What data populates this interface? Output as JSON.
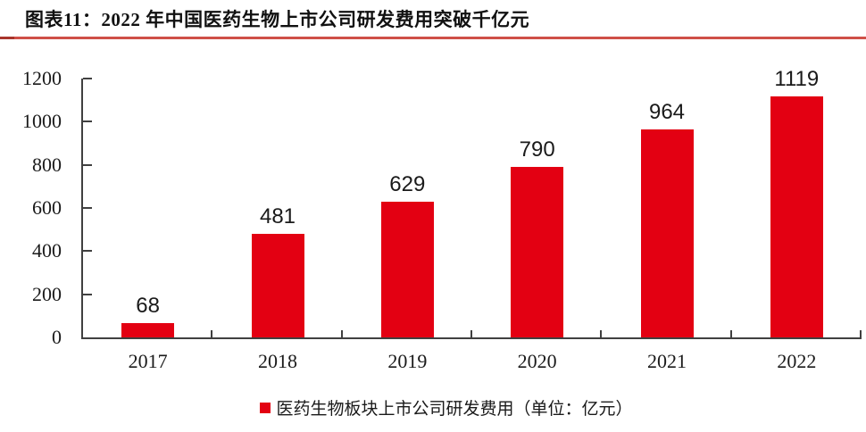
{
  "figure": {
    "title": "图表11：2022 年中国医药生物上市公司研发费用突破千亿元",
    "accent_color": "#CF5048"
  },
  "chart_data": {
    "type": "bar",
    "title": "2022 年中国医药生物上市公司研发费用突破千亿元",
    "categories": [
      "2017",
      "2018",
      "2019",
      "2020",
      "2021",
      "2022"
    ],
    "values": [
      68,
      481,
      629,
      790,
      964,
      1119
    ],
    "legend": "医药生物板块上市公司研发费用（单位：亿元）",
    "unit": "亿元",
    "ylim": [
      0,
      1200
    ],
    "yticks": [
      0,
      200,
      400,
      600,
      800,
      1000,
      1200
    ],
    "bar_color": "#E30012",
    "axis_color": "#404040",
    "text_color": "#1A1A1A",
    "grid": false,
    "legend_position": "bottom",
    "legend_marker": "square"
  }
}
